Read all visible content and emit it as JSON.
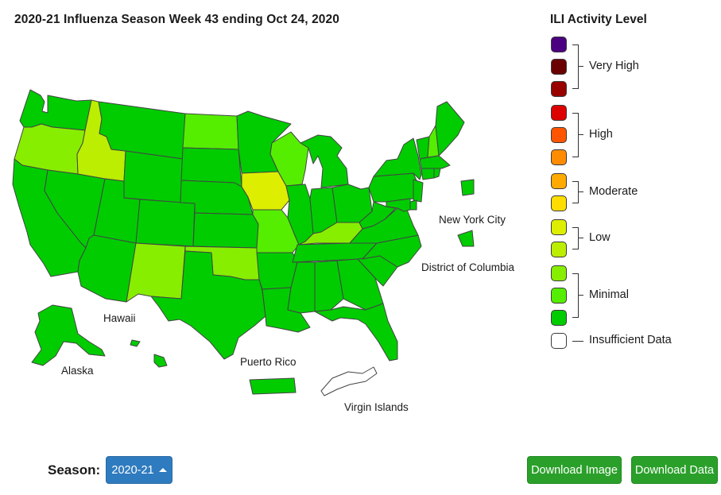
{
  "title": "2020-21 Influenza Season Week 43 ending Oct 24, 2020",
  "legend": {
    "title": "ILI Activity Level",
    "levels": [
      {
        "level": 13,
        "color": "#4b0082"
      },
      {
        "level": 12,
        "color": "#6b0000"
      },
      {
        "level": 11,
        "color": "#990000"
      },
      {
        "level": 10,
        "color": "#dd0000"
      },
      {
        "level": 9,
        "color": "#ff5500"
      },
      {
        "level": 8,
        "color": "#ff8c00"
      },
      {
        "level": 7,
        "color": "#ffaa00"
      },
      {
        "level": 6,
        "color": "#ffdd00"
      },
      {
        "level": 5,
        "color": "#ddee00"
      },
      {
        "level": 4,
        "color": "#bbee00"
      },
      {
        "level": 3,
        "color": "#88ee00"
      },
      {
        "level": 2,
        "color": "#55ee00"
      },
      {
        "level": 1,
        "color": "#00cc00"
      }
    ],
    "groups": {
      "very_high": "Very High",
      "high": "High",
      "moderate": "Moderate",
      "low": "Low",
      "minimal": "Minimal"
    },
    "insufficient": {
      "label": "Insufficient Data",
      "color": "#ffffff"
    }
  },
  "territory_labels": {
    "new_york_city": "New York City",
    "district_of_columbia": "District of Columbia",
    "hawaii": "Hawaii",
    "alaska": "Alaska",
    "puerto_rico": "Puerto Rico",
    "virgin_islands": "Virgin Islands"
  },
  "activity": {
    "WA": 1,
    "OR": 3,
    "CA": 1,
    "NV": 1,
    "ID": 4,
    "MT": 1,
    "WY": 1,
    "UT": 1,
    "AZ": 1,
    "CO": 1,
    "NM": 3,
    "ND": 2,
    "SD": 1,
    "NE": 1,
    "KS": 1,
    "OK": 3,
    "TX": 1,
    "MN": 1,
    "IA": 5,
    "MO": 2,
    "AR": 1,
    "LA": 1,
    "WI": 2,
    "IL": 1,
    "MI": 1,
    "IN": 1,
    "OH": 1,
    "KY": 3,
    "TN": 1,
    "MS": 1,
    "AL": 1,
    "GA": 1,
    "FL": 1,
    "SC": 1,
    "NC": 1,
    "VA": 1,
    "WV": 1,
    "PA": 1,
    "NY": 1,
    "VT": 1,
    "NH": 2,
    "ME": 1,
    "MA": 1,
    "CT": 1,
    "RI": 1,
    "NJ": 1,
    "DE": 1,
    "MD": 1,
    "AK": 1,
    "HI": 1,
    "PR": 1,
    "NYC": 1,
    "DC": 1,
    "VI": 0
  },
  "footer": {
    "season_label": "Season:",
    "season_value": "2020-21",
    "download_image": "Download Image",
    "download_data": "Download Data"
  }
}
